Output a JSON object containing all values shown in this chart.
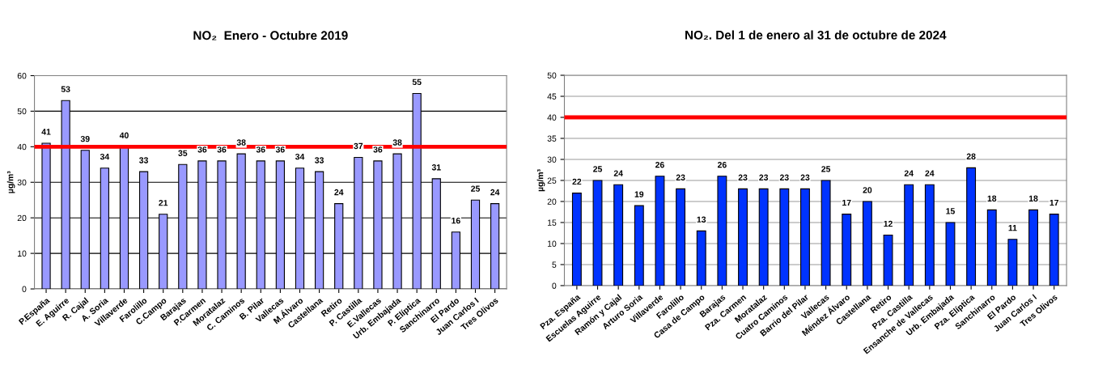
{
  "chart_data": [
    {
      "type": "bar",
      "title": "NO₂  Enero - Octubre 2019",
      "ylabel": "µg/m³",
      "categories": [
        "P.España",
        "E. Aguirre",
        "R. Cajal",
        "A. Soria",
        "Villaverde",
        "Farolillo",
        "C.Campo",
        "Barajas",
        "P.Carmen",
        "Moratalaz",
        "C. Caminos",
        "B. Pilar",
        "Vallecas",
        "M.Álvaro",
        "Castellana",
        "Retiro",
        "P. Castilla",
        "E.Vallecas",
        "Urb. Embajada",
        "P. Elíptica",
        "Sanchinarro",
        "El Pardo",
        "Juan Carlos I",
        "Tres Olivos"
      ],
      "values": [
        41,
        53,
        39,
        34,
        40,
        33,
        21,
        35,
        36,
        36,
        38,
        36,
        36,
        34,
        33,
        24,
        37,
        36,
        38,
        55,
        31,
        16,
        25,
        24
      ],
      "color": "#9999ff",
      "ylim": [
        0,
        60
      ],
      "yticks": [
        0,
        10,
        20,
        30,
        40,
        50,
        60
      ],
      "grid": "y",
      "data_labels": true,
      "ref_lines": [
        {
          "axis": "y",
          "value": 40,
          "color": "#ff0000"
        }
      ]
    },
    {
      "type": "bar",
      "title": "NO₂. Del 1 de enero al 31 de octubre de 2024",
      "ylabel": "µg/m³",
      "categories": [
        "Pza. España",
        "Escuelas Aguirre",
        "Ramón y Cajal",
        "Arturo Soria",
        "Villaverde",
        "Farolillo",
        "Casa de Campo",
        "Barajas",
        "Pza. Carmen",
        "Moratalaz",
        "Cuatro Caminos",
        "Barrio del Pilar",
        "Vallecas",
        "Méndez Álvaro",
        "Castellana",
        "Retiro",
        "Pza. Castilla",
        "Ensanche de Vallecas",
        "Urb. Embajada",
        "Pza. Elíptica",
        "Sanchinarro",
        "El Pardo",
        "Juan Carlos I",
        "Tres Olivos"
      ],
      "values": [
        22,
        25,
        24,
        19,
        26,
        23,
        13,
        26,
        23,
        23,
        23,
        23,
        25,
        17,
        20,
        12,
        24,
        24,
        15,
        28,
        18,
        11,
        18,
        17
      ],
      "color": "#0033ff",
      "ylim": [
        0,
        50
      ],
      "yticks": [
        0,
        5,
        10,
        15,
        20,
        25,
        30,
        35,
        40,
        45,
        50
      ],
      "grid": "y",
      "data_labels": true,
      "ref_lines": [
        {
          "axis": "y",
          "value": 40,
          "color": "#ff0000"
        }
      ]
    }
  ]
}
